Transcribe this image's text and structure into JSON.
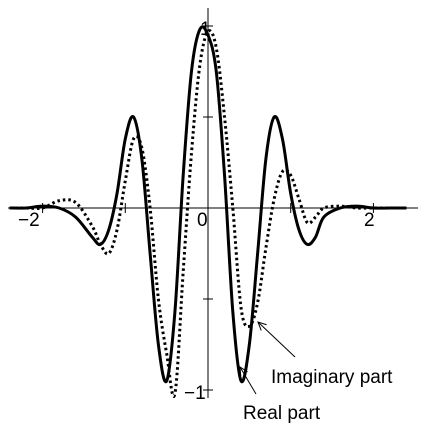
{
  "chart_data": {
    "type": "line",
    "xlim": [
      -2.45,
      2.45
    ],
    "ylim": [
      -1.07,
      1.08
    ],
    "x_ticks": [
      {
        "value": -2,
        "label": "−2"
      },
      {
        "value": 0,
        "label": "0"
      },
      {
        "value": 2,
        "label": "2"
      }
    ],
    "y_ticks": [
      {
        "value": 1,
        "label": "1"
      },
      {
        "value": -1,
        "label": "−1"
      }
    ],
    "grid": false,
    "legend": "none",
    "series": [
      {
        "style": "solid",
        "color": "#000000",
        "x": [
          -2.4,
          -2.2,
          -2.0,
          -1.8,
          -1.6,
          -1.4,
          -1.3,
          -1.2,
          -1.1,
          -1.0,
          -0.9,
          -0.8,
          -0.7,
          -0.6,
          -0.5,
          -0.4,
          -0.3,
          -0.2,
          -0.1,
          0.0,
          0.1,
          0.2,
          0.3,
          0.4,
          0.5,
          0.6,
          0.7,
          0.8,
          0.9,
          1.0,
          1.1,
          1.2,
          1.3,
          1.4,
          1.6,
          1.8,
          2.0,
          2.2,
          2.4
        ],
        "y": [
          0.0,
          0.0,
          0.01,
          0.0,
          -0.05,
          -0.16,
          -0.2,
          -0.12,
          0.08,
          0.38,
          0.5,
          0.27,
          -0.25,
          -0.75,
          -0.95,
          -0.57,
          0.18,
          0.75,
          0.98,
          0.95,
          0.75,
          0.18,
          -0.57,
          -0.95,
          -0.75,
          -0.25,
          0.27,
          0.5,
          0.38,
          0.08,
          -0.12,
          -0.2,
          -0.16,
          -0.05,
          0.0,
          0.01,
          0.0,
          0.0,
          0.0
        ]
      },
      {
        "style": "dotted",
        "color": "#000000",
        "x": [
          -2.4,
          -2.2,
          -2.0,
          -1.8,
          -1.6,
          -1.4,
          -1.3,
          -1.2,
          -1.1,
          -1.0,
          -0.9,
          -0.8,
          -0.7,
          -0.6,
          -0.5,
          -0.4,
          -0.3,
          -0.2,
          -0.1,
          0.0,
          0.1,
          0.2,
          0.3,
          0.4,
          0.5,
          0.6,
          0.7,
          0.8,
          0.9,
          1.0,
          1.1,
          1.2,
          1.3,
          1.4,
          1.6,
          1.8,
          2.0,
          2.2,
          2.4
        ],
        "y": [
          0.0,
          0.0,
          0.0,
          0.04,
          0.03,
          -0.1,
          -0.2,
          -0.25,
          -0.12,
          0.15,
          0.38,
          0.33,
          0.0,
          -0.5,
          -0.8,
          -1.02,
          -0.35,
          0.3,
          0.78,
          0.97,
          0.88,
          0.5,
          0.0,
          -0.55,
          -0.65,
          -0.52,
          -0.22,
          0.05,
          0.2,
          0.18,
          0.05,
          -0.08,
          -0.05,
          0.0,
          0.01,
          0.0,
          0.0,
          0.0,
          0.0
        ]
      }
    ],
    "annotations": [
      {
        "text": "Imaginary part",
        "points_to": {
          "x": 0.6,
          "y": -0.6
        }
      },
      {
        "text": "Real part",
        "points_to": {
          "x": 0.35,
          "y": -0.87
        }
      }
    ]
  }
}
